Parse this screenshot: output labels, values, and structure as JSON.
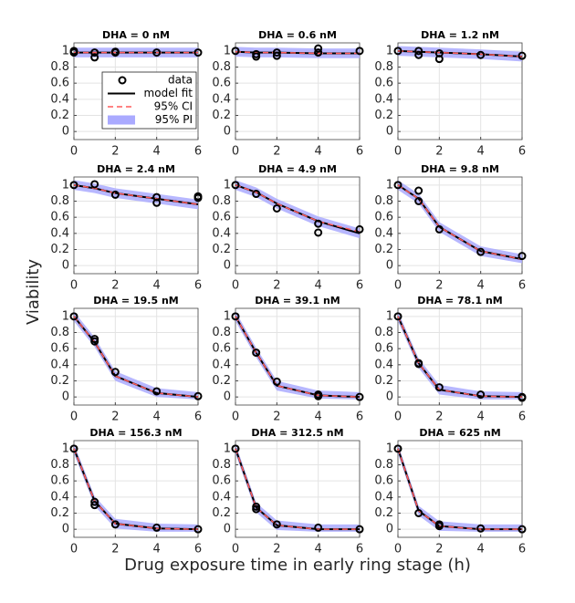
{
  "ylabel": "Viability",
  "xlabel": "Drug exposure time in early ring stage (h)",
  "legend": "upper right",
  "chart_data": [
    {
      "type": "line",
      "title": "DHA = 0 nM",
      "x": [
        0,
        1,
        2,
        4,
        6
      ],
      "series": [
        {
          "name": "model fit",
          "color": "#000000",
          "values": [
            0.98,
            0.98,
            0.98,
            0.98,
            0.98
          ]
        },
        {
          "name": "95% CI",
          "color": "#ff5a5a",
          "values": [
            0.98,
            0.98,
            0.98,
            0.98,
            0.98
          ]
        }
      ],
      "band": {
        "name": "95% PI",
        "color": "#aaaaff",
        "lower": [
          0.92,
          0.92,
          0.92,
          0.92,
          0.92
        ],
        "upper": [
          1.04,
          1.04,
          1.04,
          1.04,
          1.04
        ]
      },
      "data": {
        "name": "data",
        "x": [
          0,
          0,
          1,
          1,
          2,
          2,
          4,
          6
        ],
        "y": [
          1,
          0.98,
          0.92,
          0.98,
          0.98,
          0.99,
          0.98,
          0.98
        ]
      },
      "xlim": [
        0,
        6
      ],
      "ylim": [
        -0.1,
        1.1
      ],
      "xticks": [
        0,
        2,
        4,
        6
      ],
      "yticks": [
        0,
        0.2,
        0.4,
        0.6,
        0.8,
        1
      ],
      "grid": true
    },
    {
      "type": "line",
      "title": "DHA = 0.6 nM",
      "x": [
        0,
        1,
        2,
        4,
        6
      ],
      "series": [
        {
          "name": "model fit",
          "color": "#000000",
          "values": [
            0.99,
            0.98,
            0.98,
            0.97,
            0.97
          ]
        },
        {
          "name": "95% CI",
          "color": "#ff5a5a",
          "values": [
            0.99,
            0.98,
            0.98,
            0.97,
            0.97
          ]
        }
      ],
      "band": {
        "name": "95% PI",
        "color": "#aaaaff",
        "lower": [
          0.93,
          0.92,
          0.92,
          0.91,
          0.91
        ],
        "upper": [
          1.05,
          1.04,
          1.04,
          1.03,
          1.03
        ]
      },
      "data": {
        "name": "data",
        "x": [
          0,
          1,
          1,
          2,
          2,
          4,
          4,
          6
        ],
        "y": [
          1,
          0.93,
          0.96,
          0.94,
          0.98,
          1.03,
          0.98,
          1
        ]
      },
      "xlim": [
        0,
        6
      ],
      "ylim": [
        -0.1,
        1.1
      ],
      "xticks": [
        0,
        2,
        4,
        6
      ],
      "yticks": [
        0,
        0.2,
        0.4,
        0.6,
        0.8,
        1
      ],
      "grid": true
    },
    {
      "type": "line",
      "title": "DHA = 1.2 nM",
      "x": [
        0,
        1,
        2,
        4,
        6
      ],
      "series": [
        {
          "name": "model fit",
          "color": "#000000",
          "values": [
            1,
            0.99,
            0.98,
            0.96,
            0.93
          ]
        },
        {
          "name": "95% CI",
          "color": "#ff5a5a",
          "values": [
            1,
            0.99,
            0.98,
            0.96,
            0.93
          ]
        }
      ],
      "band": {
        "name": "95% PI",
        "color": "#aaaaff",
        "lower": [
          0.94,
          0.93,
          0.92,
          0.9,
          0.87
        ],
        "upper": [
          1.06,
          1.05,
          1.04,
          1.02,
          0.99
        ]
      },
      "data": {
        "name": "data",
        "x": [
          0,
          1,
          1,
          2,
          2,
          4,
          6
        ],
        "y": [
          1,
          0.95,
          1,
          0.9,
          0.97,
          0.95,
          0.94
        ]
      },
      "xlim": [
        0,
        6
      ],
      "ylim": [
        -0.1,
        1.1
      ],
      "xticks": [
        0,
        2,
        4,
        6
      ],
      "yticks": [
        0,
        0.2,
        0.4,
        0.6,
        0.8,
        1
      ],
      "grid": true
    },
    {
      "type": "line",
      "title": "DHA = 2.4 nM",
      "x": [
        0,
        1,
        2,
        4,
        6
      ],
      "series": [
        {
          "name": "model fit",
          "color": "#000000",
          "values": [
            1,
            0.96,
            0.9,
            0.83,
            0.76
          ]
        },
        {
          "name": "95% CI",
          "color": "#ff5a5a",
          "values": [
            1,
            0.96,
            0.9,
            0.83,
            0.76
          ]
        }
      ],
      "band": {
        "name": "95% PI",
        "color": "#aaaaff",
        "lower": [
          0.94,
          0.9,
          0.84,
          0.77,
          0.7
        ],
        "upper": [
          1.06,
          1.02,
          0.96,
          0.89,
          0.82
        ]
      },
      "data": {
        "name": "data",
        "x": [
          0,
          1,
          2,
          4,
          4,
          6,
          6
        ],
        "y": [
          1,
          1.01,
          0.88,
          0.85,
          0.78,
          0.86,
          0.84
        ]
      },
      "xlim": [
        0,
        6
      ],
      "ylim": [
        -0.1,
        1.1
      ],
      "xticks": [
        0,
        2,
        4,
        6
      ],
      "yticks": [
        0,
        0.2,
        0.4,
        0.6,
        0.8,
        1
      ],
      "grid": true
    },
    {
      "type": "line",
      "title": "DHA = 4.9 nM",
      "x": [
        0,
        1,
        2,
        4,
        6
      ],
      "series": [
        {
          "name": "model fit",
          "color": "#000000",
          "values": [
            1,
            0.91,
            0.77,
            0.55,
            0.4
          ]
        },
        {
          "name": "95% CI",
          "color": "#ff5a5a",
          "values": [
            1,
            0.91,
            0.77,
            0.55,
            0.42
          ]
        }
      ],
      "band": {
        "name": "95% PI",
        "color": "#aaaaff",
        "lower": [
          0.94,
          0.85,
          0.71,
          0.49,
          0.34
        ],
        "upper": [
          1.06,
          0.97,
          0.83,
          0.61,
          0.46
        ]
      },
      "data": {
        "name": "data",
        "x": [
          0,
          1,
          2,
          4,
          4,
          6
        ],
        "y": [
          1,
          0.89,
          0.71,
          0.41,
          0.52,
          0.45
        ]
      },
      "xlim": [
        0,
        6
      ],
      "ylim": [
        -0.1,
        1.1
      ],
      "xticks": [
        0,
        2,
        4,
        6
      ],
      "yticks": [
        0,
        0.2,
        0.4,
        0.6,
        0.8,
        1
      ],
      "grid": true
    },
    {
      "type": "line",
      "title": "DHA = 9.8 nM",
      "x": [
        0,
        1,
        2,
        4,
        6
      ],
      "series": [
        {
          "name": "model fit",
          "color": "#000000",
          "values": [
            1,
            0.83,
            0.48,
            0.18,
            0.08
          ]
        },
        {
          "name": "95% CI",
          "color": "#ff5a5a",
          "values": [
            1,
            0.83,
            0.48,
            0.18,
            0.08
          ]
        }
      ],
      "band": {
        "name": "95% PI",
        "color": "#aaaaff",
        "lower": [
          0.94,
          0.77,
          0.42,
          0.12,
          0.03
        ],
        "upper": [
          1.06,
          0.89,
          0.54,
          0.24,
          0.14
        ]
      },
      "data": {
        "name": "data",
        "x": [
          0,
          1,
          1,
          2,
          4,
          6
        ],
        "y": [
          1,
          0.93,
          0.8,
          0.45,
          0.17,
          0.12
        ]
      },
      "xlim": [
        0,
        6
      ],
      "ylim": [
        -0.1,
        1.1
      ],
      "xticks": [
        0,
        2,
        4,
        6
      ],
      "yticks": [
        0,
        0.2,
        0.4,
        0.6,
        0.8,
        1
      ],
      "grid": true
    },
    {
      "type": "line",
      "title": "DHA = 19.5 nM",
      "x": [
        0,
        1,
        2,
        4,
        6
      ],
      "series": [
        {
          "name": "model fit",
          "color": "#000000",
          "values": [
            1,
            0.68,
            0.26,
            0.05,
            0
          ]
        },
        {
          "name": "95% CI",
          "color": "#ff5a5a",
          "values": [
            1,
            0.68,
            0.26,
            0.05,
            0
          ]
        }
      ],
      "band": {
        "name": "95% PI",
        "color": "#aaaaff",
        "lower": [
          0.94,
          0.62,
          0.2,
          0,
          -0.03
        ],
        "upper": [
          1.06,
          0.74,
          0.32,
          0.11,
          0.06
        ]
      },
      "data": {
        "name": "data",
        "x": [
          0,
          1,
          1,
          2,
          4,
          6
        ],
        "y": [
          1,
          0.72,
          0.69,
          0.31,
          0.07,
          0.01
        ]
      },
      "xlim": [
        0,
        6
      ],
      "ylim": [
        -0.1,
        1.1
      ],
      "xticks": [
        0,
        2,
        4,
        6
      ],
      "yticks": [
        0,
        0.2,
        0.4,
        0.6,
        0.8,
        1
      ],
      "grid": true
    },
    {
      "type": "line",
      "title": "DHA = 39.1 nM",
      "x": [
        0,
        1,
        2,
        4,
        6
      ],
      "series": [
        {
          "name": "model fit",
          "color": "#000000",
          "values": [
            1,
            0.55,
            0.14,
            0.02,
            0
          ]
        },
        {
          "name": "95% CI",
          "color": "#ff5a5a",
          "values": [
            1,
            0.55,
            0.14,
            0.02,
            0
          ]
        }
      ],
      "band": {
        "name": "95% PI",
        "color": "#aaaaff",
        "lower": [
          0.94,
          0.49,
          0.08,
          -0.02,
          -0.03
        ],
        "upper": [
          1.06,
          0.61,
          0.2,
          0.08,
          0.06
        ]
      },
      "data": {
        "name": "data",
        "x": [
          0,
          1,
          2,
          4,
          4,
          6
        ],
        "y": [
          1,
          0.55,
          0.19,
          0.03,
          0.01,
          0
        ]
      },
      "xlim": [
        0,
        6
      ],
      "ylim": [
        -0.1,
        1.1
      ],
      "xticks": [
        0,
        2,
        4,
        6
      ],
      "yticks": [
        0,
        0.2,
        0.4,
        0.6,
        0.8,
        1
      ],
      "grid": true
    },
    {
      "type": "line",
      "title": "DHA = 78.1 nM",
      "x": [
        0,
        1,
        2,
        4,
        6
      ],
      "series": [
        {
          "name": "model fit",
          "color": "#000000",
          "values": [
            1,
            0.42,
            0.09,
            0.01,
            0
          ]
        },
        {
          "name": "95% CI",
          "color": "#ff5a5a",
          "values": [
            1,
            0.42,
            0.09,
            0.01,
            0
          ]
        }
      ],
      "band": {
        "name": "95% PI",
        "color": "#aaaaff",
        "lower": [
          0.94,
          0.36,
          0.03,
          -0.03,
          -0.03
        ],
        "upper": [
          1.06,
          0.48,
          0.15,
          0.07,
          0.06
        ]
      },
      "data": {
        "name": "data",
        "x": [
          0,
          1,
          1,
          2,
          4,
          6,
          6
        ],
        "y": [
          1,
          0.42,
          0.41,
          0.12,
          0.03,
          0,
          -0.01
        ]
      },
      "xlim": [
        0,
        6
      ],
      "ylim": [
        -0.1,
        1.1
      ],
      "xticks": [
        0,
        2,
        4,
        6
      ],
      "yticks": [
        0,
        0.2,
        0.4,
        0.6,
        0.8,
        1
      ],
      "grid": true
    },
    {
      "type": "line",
      "title": "DHA = 156.3 nM",
      "x": [
        0,
        1,
        2,
        4,
        6
      ],
      "series": [
        {
          "name": "model fit",
          "color": "#000000",
          "values": [
            1,
            0.35,
            0.07,
            0.01,
            0
          ]
        },
        {
          "name": "95% CI",
          "color": "#ff5a5a",
          "values": [
            1,
            0.35,
            0.07,
            0.01,
            0
          ]
        }
      ],
      "band": {
        "name": "95% PI",
        "color": "#aaaaff",
        "lower": [
          0.94,
          0.29,
          0.01,
          -0.03,
          -0.03
        ],
        "upper": [
          1.06,
          0.41,
          0.13,
          0.07,
          0.06
        ]
      },
      "data": {
        "name": "data",
        "x": [
          0,
          1,
          1,
          2,
          4,
          6
        ],
        "y": [
          1,
          0.34,
          0.3,
          0.06,
          0.02,
          0
        ]
      },
      "xlim": [
        0,
        6
      ],
      "ylim": [
        -0.1,
        1.1
      ],
      "xticks": [
        0,
        2,
        4,
        6
      ],
      "yticks": [
        0,
        0.2,
        0.4,
        0.6,
        0.8,
        1
      ],
      "grid": true
    },
    {
      "type": "line",
      "title": "DHA = 312.5 nM",
      "x": [
        0,
        1,
        2,
        4,
        6
      ],
      "series": [
        {
          "name": "model fit",
          "color": "#000000",
          "values": [
            1,
            0.27,
            0.05,
            0,
            0
          ]
        },
        {
          "name": "95% CI",
          "color": "#ff5a5a",
          "values": [
            1,
            0.27,
            0.05,
            0,
            0
          ]
        }
      ],
      "band": {
        "name": "95% PI",
        "color": "#aaaaff",
        "lower": [
          0.94,
          0.21,
          -0.01,
          -0.03,
          -0.03
        ],
        "upper": [
          1.06,
          0.33,
          0.11,
          0.06,
          0.06
        ]
      },
      "data": {
        "name": "data",
        "x": [
          0,
          1,
          1,
          2,
          4,
          6
        ],
        "y": [
          1,
          0.28,
          0.25,
          0.06,
          0.02,
          0
        ]
      },
      "xlim": [
        0,
        6
      ],
      "ylim": [
        -0.1,
        1.1
      ],
      "xticks": [
        0,
        2,
        4,
        6
      ],
      "yticks": [
        0,
        0.2,
        0.4,
        0.6,
        0.8,
        1
      ],
      "grid": true
    },
    {
      "type": "line",
      "title": "DHA = 625 nM",
      "x": [
        0,
        1,
        2,
        4,
        6
      ],
      "series": [
        {
          "name": "model fit",
          "color": "#000000",
          "values": [
            1,
            0.23,
            0.04,
            0,
            0
          ]
        },
        {
          "name": "95% CI",
          "color": "#ff5a5a",
          "values": [
            1,
            0.23,
            0.04,
            0,
            0
          ]
        }
      ],
      "band": {
        "name": "95% PI",
        "color": "#aaaaff",
        "lower": [
          0.94,
          0.17,
          -0.02,
          -0.03,
          -0.03
        ],
        "upper": [
          1.06,
          0.29,
          0.1,
          0.06,
          0.06
        ]
      },
      "data": {
        "name": "data",
        "x": [
          0,
          1,
          2,
          2,
          4,
          6
        ],
        "y": [
          1,
          0.2,
          0.06,
          0.04,
          0.01,
          0
        ]
      },
      "xlim": [
        0,
        6
      ],
      "ylim": [
        -0.1,
        1.1
      ],
      "xticks": [
        0,
        2,
        4,
        6
      ],
      "yticks": [
        0,
        0.2,
        0.4,
        0.6,
        0.8,
        1
      ],
      "grid": true
    }
  ]
}
